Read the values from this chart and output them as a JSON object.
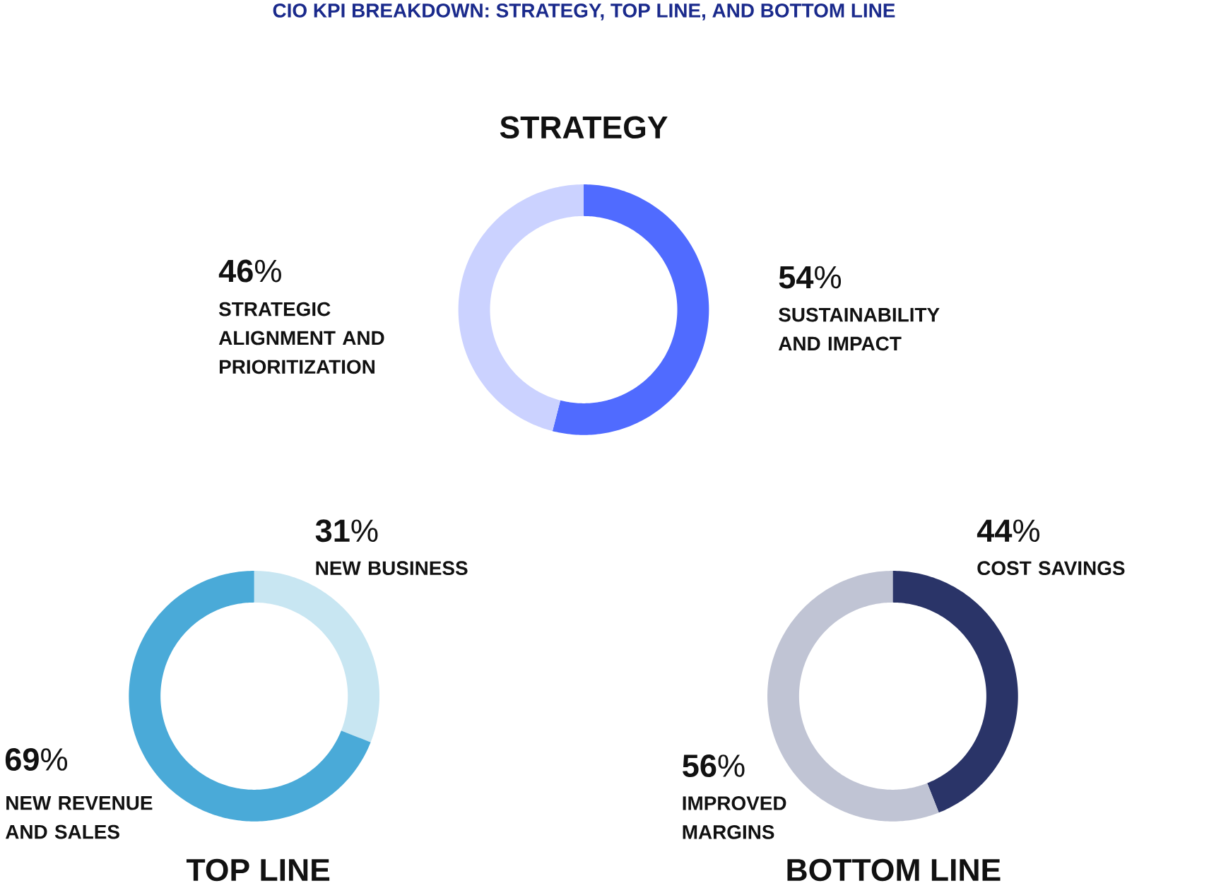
{
  "chart_data": [
    {
      "type": "other",
      "title": "CIO KPI BREAKDOWN: STRATEGY, TOP LINE, AND BOTTOM LINE"
    },
    {
      "type": "donut",
      "title": "STRATEGY",
      "categories": [
        "SUSTAINABILITY AND IMPACT",
        "STRATEGIC ALIGNMENT AND PRIORITIZATION"
      ],
      "values": [
        54,
        46
      ],
      "colors": [
        "#506bff",
        "#cbd2ff"
      ],
      "value_labels": [
        "**54**%",
        "**46**%"
      ]
    },
    {
      "type": "donut",
      "title": "TOP LINE",
      "categories": [
        "NEW BUSINESS",
        "NEW REVENUE AND SALES"
      ],
      "values": [
        31,
        69
      ],
      "colors": [
        "#c8e6f2",
        "#4aaad8"
      ],
      "value_labels": [
        "**31**%",
        "**69**%"
      ]
    },
    {
      "type": "donut",
      "title": "BOTTOM LINE",
      "categories": [
        "COST SAVINGS",
        "IMPROVED MARGINS"
      ],
      "values": [
        44,
        56
      ],
      "colors": [
        "#2a3468",
        "#c0c4d4"
      ],
      "value_labels": [
        "**44**%",
        "**56**%"
      ]
    }
  ]
}
